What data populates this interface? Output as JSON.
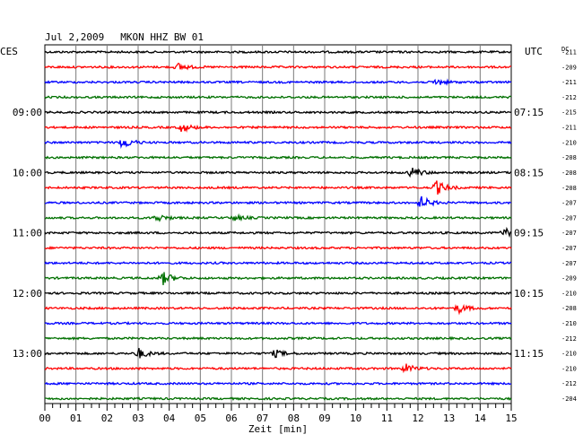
{
  "header": {
    "date": "Jul 2,2009",
    "station": "MKON HHZ BW 01",
    "left_zone": "CES",
    "right_zone": "UTC",
    "dc_label": "DC"
  },
  "chart_data": {
    "type": "line",
    "title": "Jul 2,2009   MKON HHZ BW 01",
    "xlabel": "Zeit [min]",
    "x_range": [
      0,
      15
    ],
    "x_ticks": [
      "00",
      "01",
      "02",
      "03",
      "04",
      "05",
      "06",
      "07",
      "08",
      "09",
      "10",
      "11",
      "12",
      "13",
      "14",
      "15"
    ],
    "left_hour_labels": [
      "09:00",
      "10:00",
      "11:00",
      "12:00",
      "13:00"
    ],
    "right_hour_labels": [
      "07:15",
      "08:15",
      "09:15",
      "10:15",
      "11:15"
    ],
    "hour_label_trace_index": [
      4,
      8,
      12,
      16,
      20
    ],
    "dc_offsets": [
      "-211",
      "-209",
      "-211",
      "-212",
      "-215",
      "-211",
      "-210",
      "-208",
      "-208",
      "-208",
      "-207",
      "-207",
      "-207",
      "-207",
      "-207",
      "-209",
      "-210",
      "-208",
      "-210",
      "-212",
      "-210",
      "-210",
      "-212",
      "-204"
    ],
    "trace_colors": [
      "#000000",
      "#ff0000",
      "#0000ff",
      "#007000"
    ],
    "events": [
      {
        "trace": 1,
        "minute": 4.3,
        "amplitude": 4
      },
      {
        "trace": 2,
        "minute": 12.6,
        "amplitude": 4
      },
      {
        "trace": 5,
        "minute": 4.4,
        "amplitude": 5
      },
      {
        "trace": 6,
        "minute": 2.5,
        "amplitude": 7
      },
      {
        "trace": 8,
        "minute": 11.8,
        "amplitude": 6
      },
      {
        "trace": 9,
        "minute": 12.6,
        "amplitude": 8
      },
      {
        "trace": 10,
        "minute": 12.1,
        "amplitude": 7
      },
      {
        "trace": 11,
        "minute": 3.6,
        "amplitude": 4
      },
      {
        "trace": 11,
        "minute": 6.1,
        "amplitude": 3
      },
      {
        "trace": 12,
        "minute": 14.8,
        "amplitude": 5
      },
      {
        "trace": 15,
        "minute": 3.8,
        "amplitude": 7
      },
      {
        "trace": 17,
        "minute": 13.3,
        "amplitude": 5
      },
      {
        "trace": 20,
        "minute": 3.0,
        "amplitude": 6
      },
      {
        "trace": 20,
        "minute": 7.4,
        "amplitude": 4
      },
      {
        "trace": 21,
        "minute": 11.6,
        "amplitude": 5
      }
    ],
    "grid": true
  }
}
